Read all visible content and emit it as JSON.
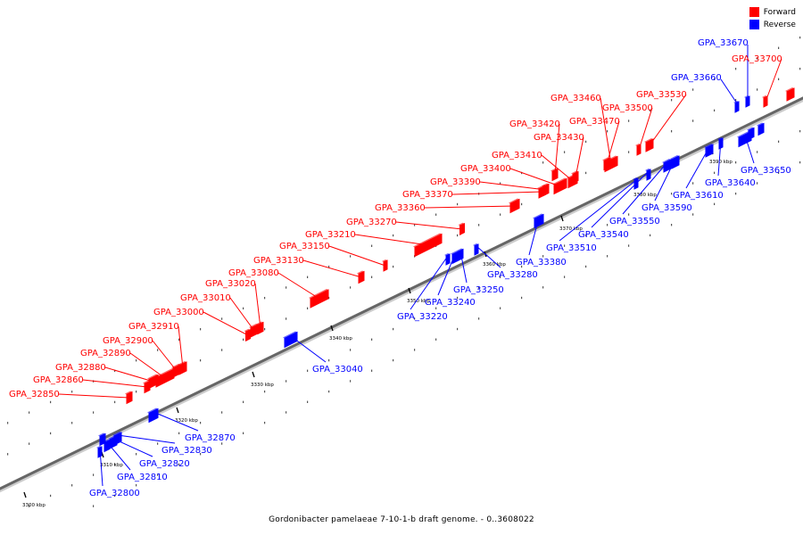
{
  "legend": {
    "forward_label": "Forward",
    "reverse_label": "Reverse",
    "forward_color": "#ff0000",
    "reverse_color": "#0000ff"
  },
  "title": "Gordonibacter pamelaeae 7-10-1-b draft genome. - 0..3608022",
  "ticks": [
    {
      "label": "3300 kbp"
    },
    {
      "label": "3310 kbp"
    },
    {
      "label": "3320 kbp"
    },
    {
      "label": "3330 kbp"
    },
    {
      "label": "3340 kbp"
    },
    {
      "label": "3350 kbp"
    },
    {
      "label": "3360 kbp"
    },
    {
      "label": "3370 kbp"
    },
    {
      "label": "3380 kbp"
    },
    {
      "label": "3390 kbp"
    }
  ],
  "forward_genes": [
    {
      "label": "GPA_32850"
    },
    {
      "label": "GPA_32860"
    },
    {
      "label": "GPA_32880"
    },
    {
      "label": "GPA_32890"
    },
    {
      "label": "GPA_32900"
    },
    {
      "label": "GPA_32910"
    },
    {
      "label": "GPA_33000"
    },
    {
      "label": "GPA_33010"
    },
    {
      "label": "GPA_33020"
    },
    {
      "label": "GPA_33080"
    },
    {
      "label": "GPA_33130"
    },
    {
      "label": "GPA_33150"
    },
    {
      "label": "GPA_33210"
    },
    {
      "label": "GPA_33270"
    },
    {
      "label": "GPA_33360"
    },
    {
      "label": "GPA_33370"
    },
    {
      "label": "GPA_33390"
    },
    {
      "label": "GPA_33400"
    },
    {
      "label": "GPA_33410"
    },
    {
      "label": "GPA_33420"
    },
    {
      "label": "GPA_33430"
    },
    {
      "label": "GPA_33460"
    },
    {
      "label": "GPA_33470"
    },
    {
      "label": "GPA_33500"
    },
    {
      "label": "GPA_33530"
    },
    {
      "label": "GPA_33700"
    }
  ],
  "reverse_genes": [
    {
      "label": "GPA_32800"
    },
    {
      "label": "GPA_32810"
    },
    {
      "label": "GPA_32820"
    },
    {
      "label": "GPA_32830"
    },
    {
      "label": "GPA_32870"
    },
    {
      "label": "GPA_33040"
    },
    {
      "label": "GPA_33220"
    },
    {
      "label": "GPA_33240"
    },
    {
      "label": "GPA_33250"
    },
    {
      "label": "GPA_33280"
    },
    {
      "label": "GPA_33380"
    },
    {
      "label": "GPA_33510"
    },
    {
      "label": "GPA_33540"
    },
    {
      "label": "GPA_33550"
    },
    {
      "label": "GPA_33590"
    },
    {
      "label": "GPA_33610"
    },
    {
      "label": "GPA_33640"
    },
    {
      "label": "GPA_33650"
    },
    {
      "label": "GPA_33660"
    },
    {
      "label": "GPA_33670"
    }
  ]
}
